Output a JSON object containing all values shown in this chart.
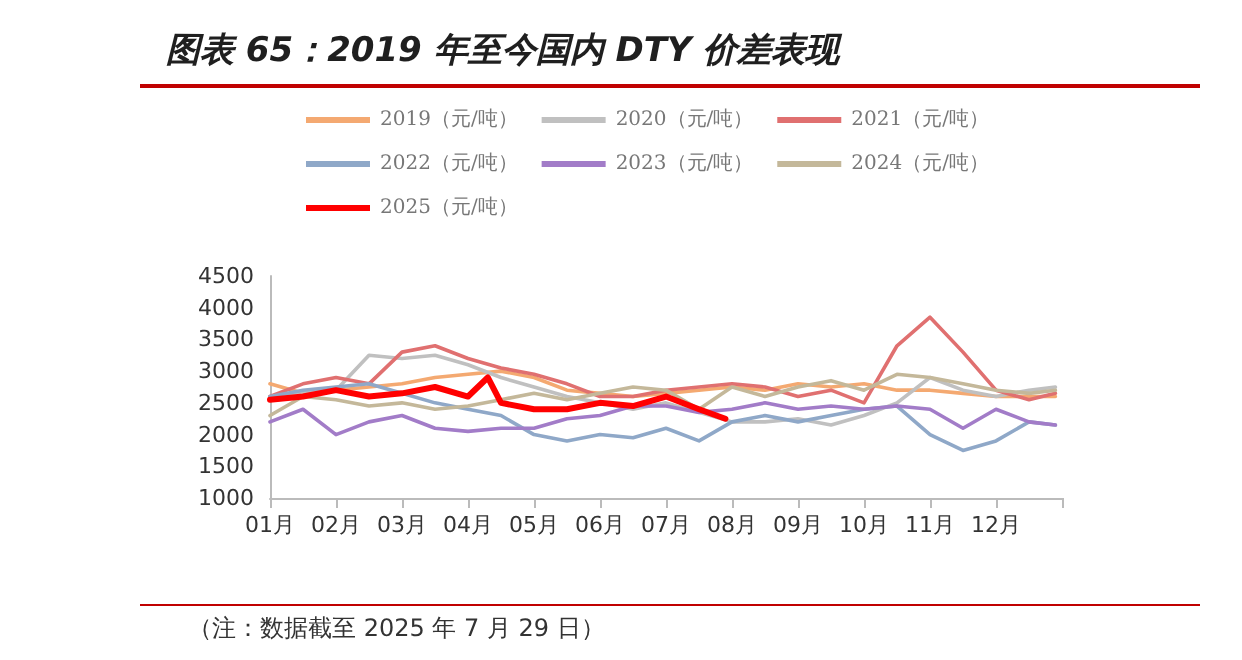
{
  "chart_data": {
    "type": "line",
    "title": "图表 65：2019 年至今国内 DTY 价差表现",
    "annotations": [
      "（注：数据截至 2025 年 7 月 29 日）"
    ],
    "x": [
      1,
      1.5,
      2,
      2.5,
      3,
      3.5,
      4,
      4.5,
      5,
      5.5,
      6,
      6.5,
      7,
      7.5,
      8,
      8.5,
      9,
      9.5,
      10,
      10.5,
      11,
      11.5,
      12,
      12.5,
      12.9
    ],
    "xlim": [
      1,
      13
    ],
    "xticks": [
      {
        "value": 1,
        "label": "01月"
      },
      {
        "value": 2,
        "label": "02月"
      },
      {
        "value": 3,
        "label": "03月"
      },
      {
        "value": 4,
        "label": "04月"
      },
      {
        "value": 5,
        "label": "05月"
      },
      {
        "value": 6,
        "label": "06月"
      },
      {
        "value": 7,
        "label": "07月"
      },
      {
        "value": 8,
        "label": "08月"
      },
      {
        "value": 9,
        "label": "09月"
      },
      {
        "value": 10,
        "label": "10月"
      },
      {
        "value": 11,
        "label": "11月"
      },
      {
        "value": 12,
        "label": "12月"
      },
      {
        "value": 13,
        "label": null
      }
    ],
    "ylim": [
      1000,
      4500
    ],
    "yticks": [
      1000,
      1500,
      2000,
      2500,
      3000,
      3500,
      4000,
      4500
    ],
    "grid": false,
    "legend": "top",
    "marker": "none",
    "line_style": "solid",
    "series": [
      {
        "name": "2019（元/吨）",
        "color": "#f4a971",
        "values": [
          2800,
          2650,
          2700,
          2750,
          2800,
          2900,
          2950,
          3000,
          2900,
          2700,
          2650,
          2600,
          2650,
          2700,
          2750,
          2700,
          2800,
          2750,
          2800,
          2700,
          2700,
          2650,
          2600,
          2600,
          2600
        ]
      },
      {
        "name": "2020（元/吨）",
        "color": "#c0c0c0",
        "values": [
          2600,
          2650,
          2700,
          3250,
          3200,
          3250,
          3100,
          2900,
          2750,
          2600,
          2500,
          2400,
          2500,
          2350,
          2200,
          2200,
          2250,
          2150,
          2300,
          2500,
          2900,
          2700,
          2600,
          2700,
          2750
        ]
      },
      {
        "name": "2021（元/吨）",
        "color": "#e07070",
        "values": [
          2600,
          2800,
          2900,
          2800,
          3300,
          3400,
          3200,
          3050,
          2950,
          2800,
          2600,
          2600,
          2700,
          2750,
          2800,
          2750,
          2600,
          2700,
          2500,
          3400,
          3850,
          3300,
          2700,
          2550,
          2650
        ]
      },
      {
        "name": "2022（元/吨）",
        "color": "#8fa8c8",
        "values": [
          2600,
          2700,
          2750,
          2800,
          2650,
          2500,
          2400,
          2300,
          2000,
          1900,
          2000,
          1950,
          2100,
          1900,
          2200,
          2300,
          2200,
          2300,
          2400,
          2450,
          2000,
          1750,
          1900,
          2200,
          2150
        ]
      },
      {
        "name": "2023（元/吨）",
        "color": "#a27cc8",
        "values": [
          2200,
          2400,
          2000,
          2200,
          2300,
          2100,
          2050,
          2100,
          2100,
          2250,
          2300,
          2450,
          2450,
          2350,
          2400,
          2500,
          2400,
          2450,
          2400,
          2450,
          2400,
          2100,
          2400,
          2200,
          2150
        ]
      },
      {
        "name": "2024（元/吨）",
        "color": "#c4b89a",
        "values": [
          2300,
          2600,
          2550,
          2450,
          2500,
          2400,
          2450,
          2550,
          2650,
          2550,
          2650,
          2750,
          2700,
          2400,
          2750,
          2600,
          2750,
          2850,
          2700,
          2950,
          2900,
          2800,
          2700,
          2650,
          2700
        ]
      },
      {
        "name": "2025（元/吨）",
        "color": "#ff0000",
        "x": [
          1,
          1.5,
          2,
          2.5,
          3,
          3.5,
          4,
          4.3,
          4.5,
          5,
          5.5,
          6,
          6.5,
          7,
          7.5,
          7.9
        ],
        "values": [
          2550,
          2600,
          2700,
          2600,
          2650,
          2750,
          2600,
          2900,
          2500,
          2400,
          2400,
          2500,
          2450,
          2600,
          2400,
          2250
        ]
      }
    ]
  }
}
